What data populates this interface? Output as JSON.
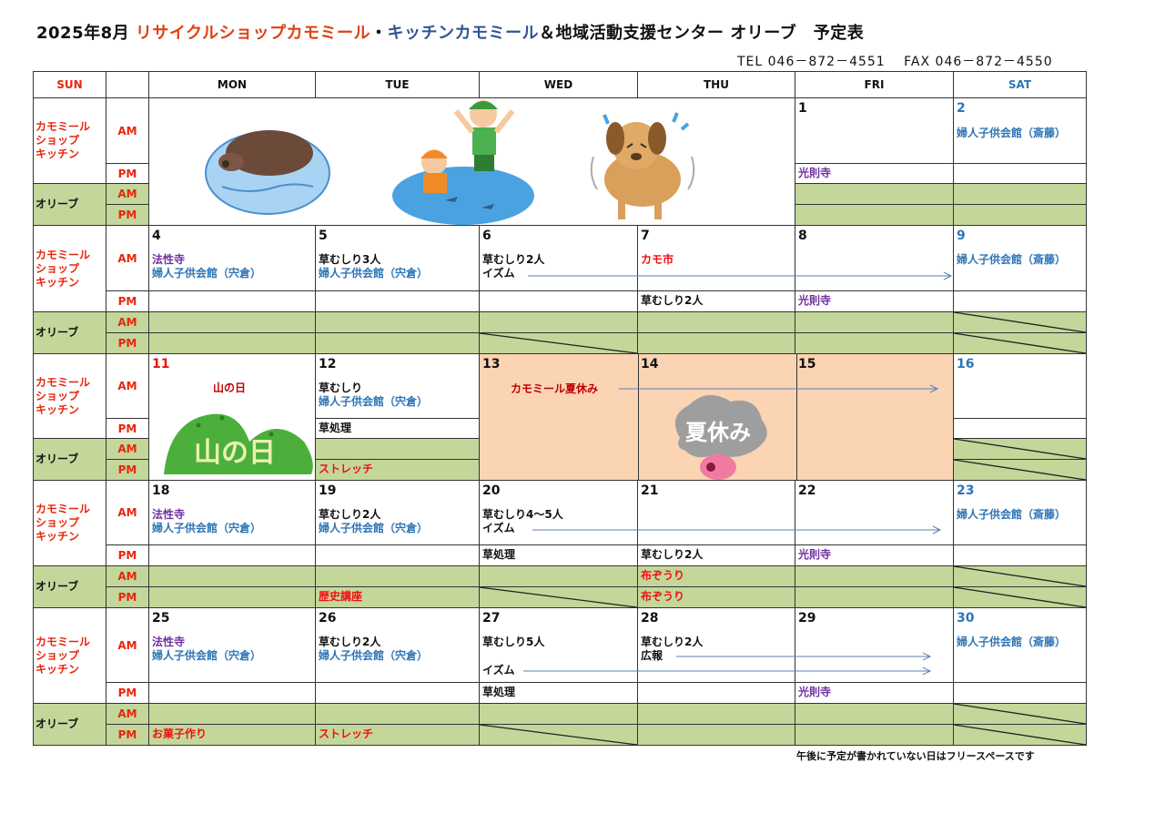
{
  "header": {
    "title_prefix": "2025年8月",
    "title_shop": "リサイクルショップカモミール",
    "title_sep": "・",
    "title_kitchen": "キッチンカモミール",
    "title_suffix": "＆地域活動支援センター オリーブ　予定表",
    "contact": "TEL 046－872－4551　 FAX 046－872－4550"
  },
  "colors": {
    "shop_title": "#e04010",
    "kitchen_title": "#2f5597",
    "olive_row": "#c4d79b",
    "summer_break": "#fbd4b4",
    "purple": "#7030a0",
    "blue": "#2e75b6",
    "red": "#f01010"
  },
  "weekdays": [
    "SUN",
    "MON",
    "TUE",
    "WED",
    "THU",
    "FRI",
    "SAT"
  ],
  "row_labels": {
    "shop": "カモミール\nショップ\nキッチン",
    "olive": "オリーブ",
    "am": "AM",
    "pm": "PM"
  },
  "weeks": [
    {
      "days": [
        {},
        {
          "block": "illustrations"
        },
        {
          "block": "illustrations"
        },
        {
          "block": "illustrations"
        },
        {
          "block": "illustrations"
        },
        {
          "date": "1",
          "am": [],
          "pm": [
            {
              "t": "光則寺",
              "c": "purple"
            }
          ],
          "olive_am": [],
          "olive_pm": []
        },
        {
          "date": "2",
          "date_color": "satblue",
          "am": [
            {
              "t": "婦人子供会館（斎藤）",
              "c": "blue"
            }
          ],
          "pm": [],
          "olive_am": [],
          "olive_pm": []
        }
      ]
    },
    {
      "days": [
        {},
        {
          "date": "4",
          "am": [
            {
              "t": "法性寺",
              "c": "purple"
            },
            {
              "t": "婦人子供会館（宍倉）",
              "c": "blue"
            }
          ],
          "pm": [],
          "olive_am": [],
          "olive_pm": []
        },
        {
          "date": "5",
          "am": [
            {
              "t": "草むしり3人",
              "c": "black"
            },
            {
              "t": "婦人子供会館（宍倉）",
              "c": "blue"
            }
          ],
          "pm": [],
          "olive_am": [],
          "olive_pm": []
        },
        {
          "date": "6",
          "am": [
            {
              "t": "草むしり2人",
              "c": "black"
            },
            {
              "t": "イズム",
              "c": "black"
            }
          ],
          "pm": [],
          "olive_am": [],
          "olive_pm": [],
          "olive_pm_crossed": true
        },
        {
          "date": "7",
          "am": [
            {
              "t": "カモ市",
              "c": "red"
            }
          ],
          "pm": [
            {
              "t": "草むしり2人",
              "c": "black"
            }
          ],
          "olive_am": [],
          "olive_pm": []
        },
        {
          "date": "8",
          "am": [],
          "pm": [
            {
              "t": "光則寺",
              "c": "purple"
            }
          ],
          "olive_am": [],
          "olive_pm": []
        },
        {
          "date": "9",
          "date_color": "satblue",
          "am": [
            {
              "t": "婦人子供会館（斎藤）",
              "c": "blue"
            }
          ],
          "pm": [],
          "olive_am": [],
          "olive_pm": [],
          "olive_am_crossed": true,
          "olive_pm_crossed": true
        }
      ]
    },
    {
      "days": [
        {},
        {
          "date": "11",
          "date_color": "red",
          "block": "holiday",
          "holiday_label": "山の日",
          "holiday_sign": "山の日"
        },
        {
          "date": "12",
          "am": [
            {
              "t": "草むしり",
              "c": "black"
            },
            {
              "t": "婦人子供会館（宍倉）",
              "c": "blue"
            }
          ],
          "pm": [
            {
              "t": "草処理",
              "c": "black"
            }
          ],
          "olive_am": [],
          "olive_pm": [
            {
              "t": "ストレッチ",
              "c": "red"
            }
          ]
        },
        {
          "date": "13",
          "block": "summer",
          "summer_label": "カモミール夏休み"
        },
        {
          "date": "14",
          "block": "summer",
          "summer_sign": "夏休み"
        },
        {
          "date": "15",
          "block": "summer"
        },
        {
          "date": "16",
          "date_color": "satblue",
          "am": [],
          "pm": [],
          "olive_am": [],
          "olive_pm": [],
          "olive_am_crossed": true,
          "olive_pm_crossed": true
        }
      ]
    },
    {
      "days": [
        {},
        {
          "date": "18",
          "am": [
            {
              "t": "法性寺",
              "c": "purple"
            },
            {
              "t": "婦人子供会館（宍倉）",
              "c": "blue"
            }
          ],
          "pm": [],
          "olive_am": [],
          "olive_pm": []
        },
        {
          "date": "19",
          "am": [
            {
              "t": "草むしり2人",
              "c": "black"
            },
            {
              "t": "婦人子供会館（宍倉）",
              "c": "blue"
            }
          ],
          "pm": [],
          "olive_am": [],
          "olive_pm": [
            {
              "t": "歴史講座",
              "c": "red"
            }
          ]
        },
        {
          "date": "20",
          "am": [
            {
              "t": "草むしり4～5人",
              "c": "black"
            },
            {
              "t": "イズム",
              "c": "black"
            }
          ],
          "pm": [
            {
              "t": "草処理",
              "c": "black"
            }
          ],
          "olive_am": [],
          "olive_pm": [],
          "olive_pm_crossed": true
        },
        {
          "date": "21",
          "am": [],
          "pm": [
            {
              "t": "草むしり2人",
              "c": "black"
            }
          ],
          "olive_am": [
            {
              "t": "布ぞうり",
              "c": "red"
            }
          ],
          "olive_pm": [
            {
              "t": "布ぞうり",
              "c": "red"
            }
          ]
        },
        {
          "date": "22",
          "am": [],
          "pm": [
            {
              "t": "光則寺",
              "c": "purple"
            }
          ],
          "olive_am": [],
          "olive_pm": []
        },
        {
          "date": "23",
          "date_color": "satblue",
          "am": [
            {
              "t": "婦人子供会館（斎藤）",
              "c": "blue"
            }
          ],
          "pm": [],
          "olive_am": [],
          "olive_pm": [],
          "olive_am_crossed": true,
          "olive_pm_crossed": true
        }
      ]
    },
    {
      "days": [
        {},
        {
          "date": "25",
          "am": [
            {
              "t": "法性寺",
              "c": "purple"
            },
            {
              "t": "婦人子供会館（宍倉）",
              "c": "blue"
            }
          ],
          "pm": [],
          "olive_am": [],
          "olive_pm": [
            {
              "t": "お菓子作り",
              "c": "red"
            }
          ]
        },
        {
          "date": "26",
          "am": [
            {
              "t": "草むしり2人",
              "c": "black"
            },
            {
              "t": "婦人子供会館（宍倉）",
              "c": "blue"
            }
          ],
          "pm": [],
          "olive_am": [],
          "olive_pm": [
            {
              "t": "ストレッチ",
              "c": "red"
            }
          ]
        },
        {
          "date": "27",
          "am": [
            {
              "t": "草むしり5人",
              "c": "black"
            },
            {
              "t": "イズム",
              "c": "black",
              "gap": true
            }
          ],
          "pm": [
            {
              "t": "草処理",
              "c": "black"
            }
          ],
          "olive_am": [],
          "olive_pm": [],
          "olive_pm_crossed": true
        },
        {
          "date": "28",
          "am": [
            {
              "t": "草むしり2人",
              "c": "black"
            },
            {
              "t": "広報",
              "c": "black"
            }
          ],
          "pm": [],
          "olive_am": [],
          "olive_pm": []
        },
        {
          "date": "29",
          "am": [],
          "pm": [
            {
              "t": "光則寺",
              "c": "purple"
            }
          ],
          "olive_am": [],
          "olive_pm": []
        },
        {
          "date": "30",
          "date_color": "satblue",
          "am": [
            {
              "t": "婦人子供会館（斎藤）",
              "c": "blue"
            }
          ],
          "pm": [],
          "olive_am": [],
          "olive_pm": [],
          "olive_am_crossed": true,
          "olive_pm_crossed": true
        }
      ]
    }
  ],
  "footer_note": "午後に予定が書かれていない日はフリースペースです"
}
